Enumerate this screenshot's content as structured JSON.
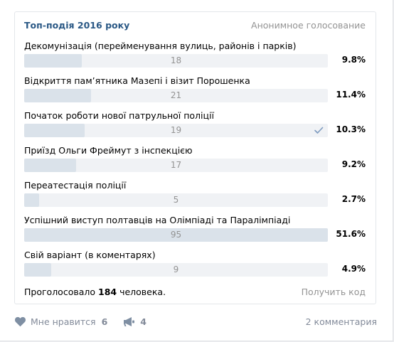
{
  "poll": {
    "title": "Топ-подія 2016 року",
    "type": "Анонимное голосование",
    "answers": [
      {
        "label": "Декомунізація (перейменування вулиць, районів і парків)",
        "count": "18",
        "percent": "9.8%",
        "fill": 0.19
      },
      {
        "label": "Відкриття пам’ятника Мазепі і візит Порошенка",
        "count": "21",
        "percent": "11.4%",
        "fill": 0.22,
        "selected": false
      },
      {
        "label": "Початок роботи нової патрульної поліції",
        "count": "19",
        "percent": "10.3%",
        "fill": 0.2,
        "selected": true
      },
      {
        "label": "Приїзд Ольги Фреймут з інспекцією",
        "count": "17",
        "percent": "9.2%",
        "fill": 0.17
      },
      {
        "label": "Переатестація поліції",
        "count": "5",
        "percent": "2.7%",
        "fill": 0.05
      },
      {
        "label": "Успішний виступ полтавців на Олімпіаді та Паралімпіаді",
        "count": "95",
        "percent": "51.6%",
        "fill": 1.0
      },
      {
        "label": "Свій варіант (в коментарях)",
        "count": "9",
        "percent": "4.9%",
        "fill": 0.09
      }
    ],
    "footer": {
      "voted_prefix": "Проголосовало",
      "voted_total": "184",
      "voted_suffix": "человека.",
      "get_code": "Получить код"
    }
  },
  "actions": {
    "like_label": "Мне нравится",
    "like_count": "6",
    "share_count": "4",
    "comments": "2 комментария"
  },
  "colors": {
    "accent": "#2a5885",
    "bar_bg": "#f0f2f5",
    "bar_fill": "#dae2ea",
    "muted": "#939393",
    "action": "#828a99"
  }
}
